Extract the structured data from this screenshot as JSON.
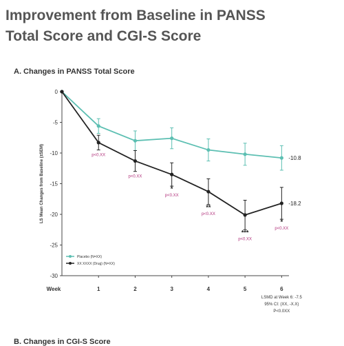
{
  "page_title_line1": "Improvement from Baseline in PANSS",
  "page_title_line2": "Total Score and CGI-S Score",
  "bottom_heading": "B. Changes in CGI-S Score",
  "chart_data": {
    "type": "line",
    "title": "A. Changes in PANSS Total Score",
    "ylabel": "LS Mean Changes from Baseline (±SEM)",
    "xlabel": "Week",
    "x": [
      0,
      1,
      2,
      3,
      4,
      5,
      6
    ],
    "xtick_labels": [
      "Week",
      "1",
      "2",
      "3",
      "4",
      "5",
      "6"
    ],
    "ylim": [
      -30,
      0
    ],
    "yticks": [
      0,
      -5,
      -10,
      -15,
      -20,
      -25,
      -30
    ],
    "series": [
      {
        "name": "Placebo (N=XX)",
        "color": "#5cbfb2",
        "values": [
          0,
          -5.6,
          -8.0,
          -7.6,
          -9.5,
          -10.2,
          -10.8
        ],
        "err": [
          0,
          1.2,
          1.6,
          1.7,
          1.8,
          1.8,
          2.0
        ],
        "end_label": "-10.8"
      },
      {
        "name": "XX XXXX (Drug) (N=XX)",
        "color": "#222222",
        "values": [
          0,
          -8.3,
          -11.3,
          -13.5,
          -16.3,
          -20.1,
          -18.2
        ],
        "err": [
          0,
          1.2,
          1.7,
          1.9,
          2.1,
          2.4,
          2.6
        ],
        "end_label": "-18.2"
      }
    ],
    "pvalues": [
      {
        "x": 1,
        "text": "p<0.XX",
        "stars": ""
      },
      {
        "x": 2,
        "text": "p<0.XX",
        "stars": ""
      },
      {
        "x": 3,
        "text": "p<0.XX",
        "stars": "*"
      },
      {
        "x": 4,
        "text": "p<0.XX",
        "stars": "**"
      },
      {
        "x": 5,
        "text": "p<0.XX",
        "stars": "***"
      },
      {
        "x": 6,
        "text": "p<0.XX",
        "stars": "*"
      }
    ],
    "note_lines": [
      "LSMD at Week 6: -7.5",
      "95% CI: (XX, -X.X)",
      "P<0.0XX"
    ],
    "legend_placement": "bottom-left",
    "grid": false
  }
}
